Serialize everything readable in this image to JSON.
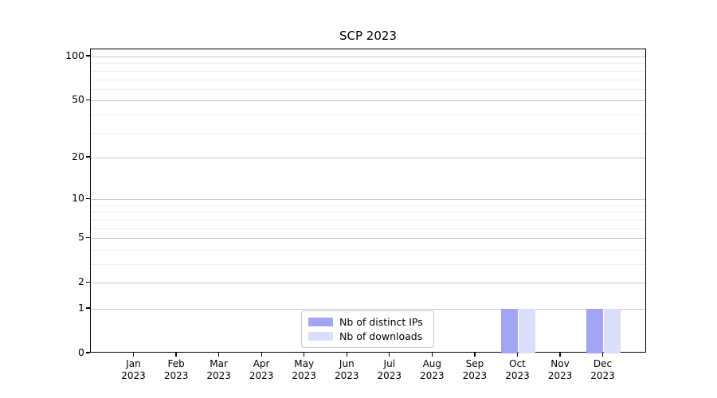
{
  "chart_data": {
    "type": "bar",
    "title": "SCP 2023",
    "categories": [
      "Jan 2023",
      "Feb 2023",
      "Mar 2023",
      "Apr 2023",
      "May 2023",
      "Jun 2023",
      "Jul 2023",
      "Aug 2023",
      "Sep 2023",
      "Oct 2023",
      "Nov 2023",
      "Dec 2023"
    ],
    "series": [
      {
        "name": "Nb of distinct IPs",
        "color": "#a4a4f5",
        "values": [
          0,
          0,
          0,
          0,
          0,
          0,
          0,
          0,
          0,
          1,
          0,
          1
        ]
      },
      {
        "name": "Nb of downloads",
        "color": "#dbdefa",
        "values": [
          0,
          0,
          0,
          0,
          0,
          0,
          0,
          0,
          0,
          1,
          0,
          1
        ]
      }
    ],
    "xlabel": "",
    "ylabel": "",
    "yscale": "log1p",
    "y_major_ticks": [
      0,
      1,
      2,
      5,
      10,
      20,
      50,
      100
    ],
    "y_minor_ticks": [
      3,
      4,
      6,
      7,
      8,
      9,
      30,
      40,
      60,
      70,
      80,
      90
    ],
    "ylim": [
      0,
      113
    ],
    "grid": "horizontal, major and minor",
    "legend_position": "lower center",
    "colors": {
      "major_grid": "#c7c7c7",
      "minor_grid": "#ededed",
      "axis": "#000000",
      "background": "#ffffff"
    }
  }
}
